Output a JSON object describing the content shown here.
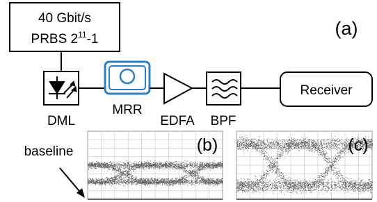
{
  "source": {
    "line1": "40 Gbit/s",
    "line2": "PRBS 2",
    "exponent": "11",
    "line2_end": "-1"
  },
  "panel_labels": {
    "a": "(a)",
    "b": "(b)",
    "c": "(c)"
  },
  "blocks": {
    "dml": "DML",
    "mrr": "MRR",
    "edfa": "EDFA",
    "bpf": "BPF",
    "receiver": "Receiver"
  },
  "annotation": "baseline"
}
